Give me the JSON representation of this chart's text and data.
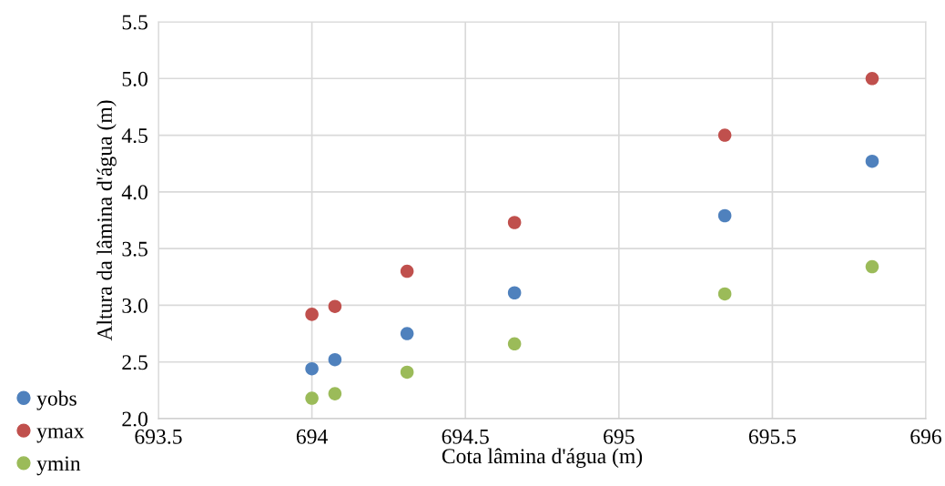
{
  "chart_data": {
    "type": "scatter",
    "xlabel": "Cota lâmina d'água (m)",
    "ylabel": "Altura da lâmina d'água (m)",
    "x": [
      694.0,
      694.075,
      694.31,
      694.66,
      695.345,
      695.825
    ],
    "series": [
      {
        "name": "yobs",
        "color": "#4f81bd",
        "values": [
          2.44,
          2.52,
          2.75,
          3.11,
          3.79,
          4.27
        ]
      },
      {
        "name": "ymax",
        "color": "#c0504d",
        "values": [
          2.92,
          2.99,
          3.3,
          3.73,
          4.5,
          5.0
        ]
      },
      {
        "name": "ymin",
        "color": "#9bbb59",
        "values": [
          2.18,
          2.22,
          2.41,
          2.66,
          3.1,
          3.34
        ]
      }
    ],
    "xlim": [
      693.5,
      696
    ],
    "xticks": [
      693.5,
      694,
      694.5,
      695,
      695.5,
      696
    ],
    "ylim": [
      2.0,
      5.5
    ],
    "yticks": [
      {
        "value": 2,
        "label": "2.0"
      },
      2.5,
      {
        "value": 3,
        "label": "3.0"
      },
      3.5,
      {
        "value": 4,
        "label": "4.0"
      },
      4.5,
      {
        "value": 5,
        "label": "5.0"
      },
      5.5
    ],
    "grid": true,
    "legend": "bottom left",
    "marker": "circle"
  }
}
